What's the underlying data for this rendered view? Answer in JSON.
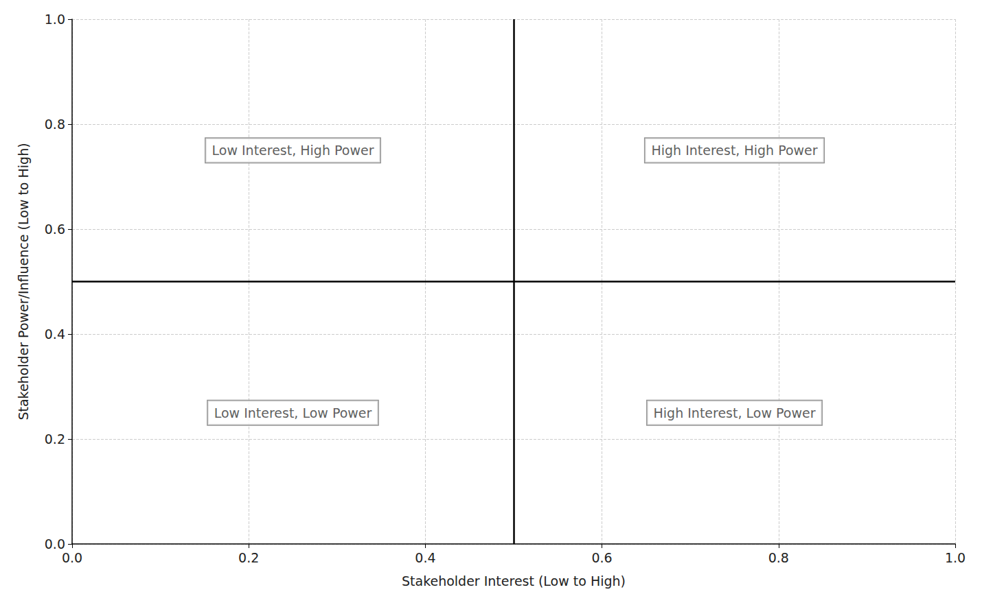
{
  "chart_data": {
    "type": "scatter",
    "xlabel": "Stakeholder Interest (Low to High)",
    "ylabel": "Stakeholder Power/Influence (Low to High)",
    "xlim": [
      0,
      1
    ],
    "ylim": [
      0,
      1
    ],
    "xticks": [
      {
        "value": 0,
        "label": "0.0"
      },
      0.2,
      0.4,
      0.6,
      0.8,
      {
        "value": 1,
        "label": "1.0"
      }
    ],
    "yticks": [
      {
        "value": 0,
        "label": "0.0"
      },
      0.2,
      0.4,
      0.6,
      0.8,
      {
        "value": 1,
        "label": "1.0"
      }
    ],
    "grid": true,
    "dividers": {
      "x": 0.5,
      "y": 0.5
    },
    "annotations": [
      {
        "text": "Low Interest, High Power",
        "x": 0.25,
        "y": 0.75
      },
      {
        "text": "High Interest, High Power",
        "x": 0.75,
        "y": 0.75
      },
      {
        "text": "Low Interest, Low Power",
        "x": 0.25,
        "y": 0.25
      },
      {
        "text": "High Interest, Low Power",
        "x": 0.75,
        "y": 0.25
      }
    ]
  }
}
